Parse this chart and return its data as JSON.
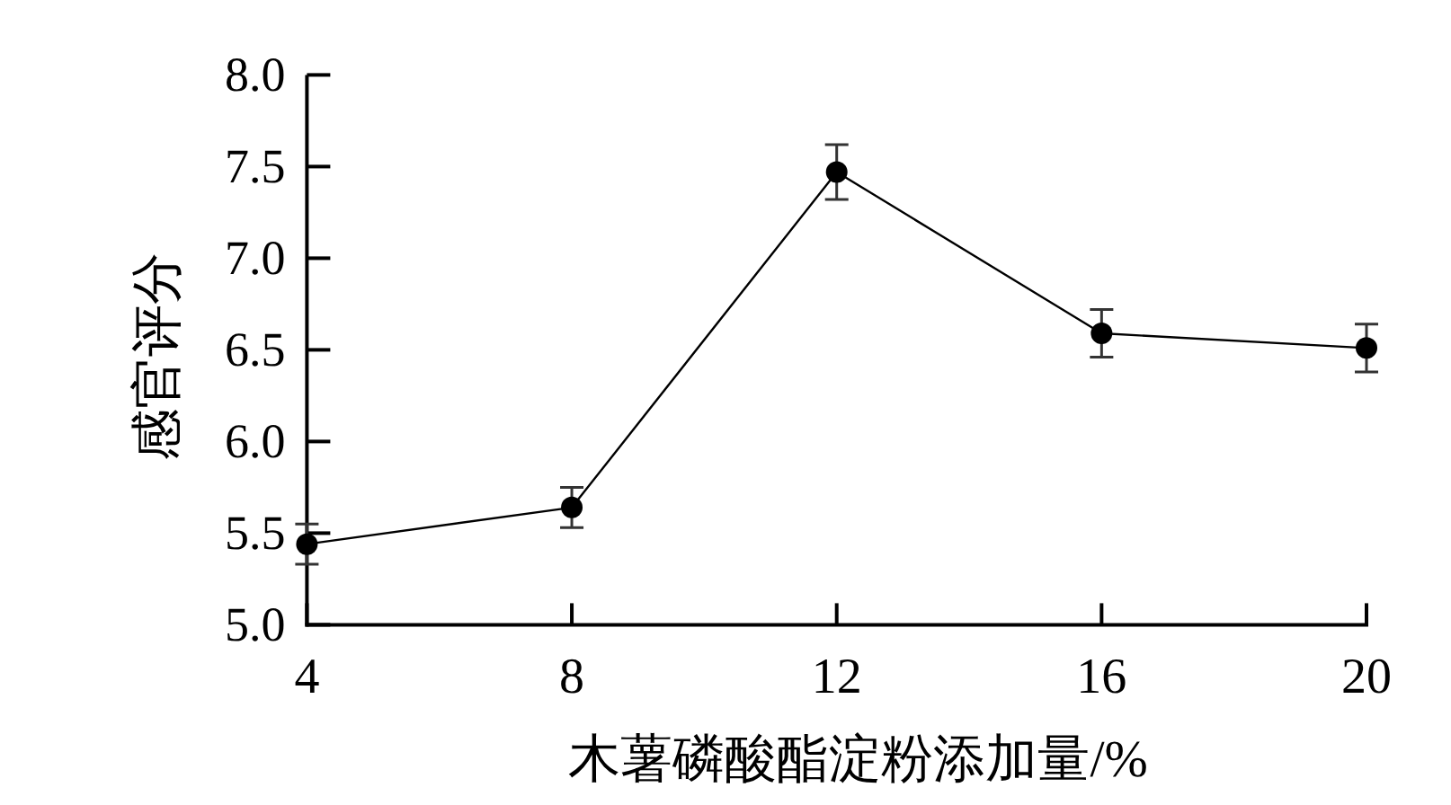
{
  "chart_data": {
    "type": "line",
    "xlabel": "木薯磷酸酯淀粉添加量/%",
    "ylabel": "感官评分",
    "x": [
      4,
      8,
      12,
      16,
      20
    ],
    "series": [
      {
        "color": "#000000",
        "values": [
          5.44,
          5.64,
          7.47,
          6.59,
          6.51
        ],
        "errors": [
          0.11,
          0.11,
          0.15,
          0.13,
          0.13
        ]
      }
    ],
    "xlim": [
      4,
      20
    ],
    "xticks": [
      4,
      8,
      12,
      16,
      20
    ],
    "ylim": [
      5,
      8
    ],
    "yticks": [
      {
        "value": 5,
        "label": "5.0"
      },
      {
        "value": 5.5,
        "label": "5.5"
      },
      {
        "value": 6,
        "label": "6.0"
      },
      {
        "value": 6.5,
        "label": "6.5"
      },
      {
        "value": 7,
        "label": "7.0"
      },
      {
        "value": 7.5,
        "label": "7.5"
      },
      {
        "value": 8,
        "label": "8.0"
      }
    ],
    "marker": "circle",
    "line_style": "solid"
  }
}
